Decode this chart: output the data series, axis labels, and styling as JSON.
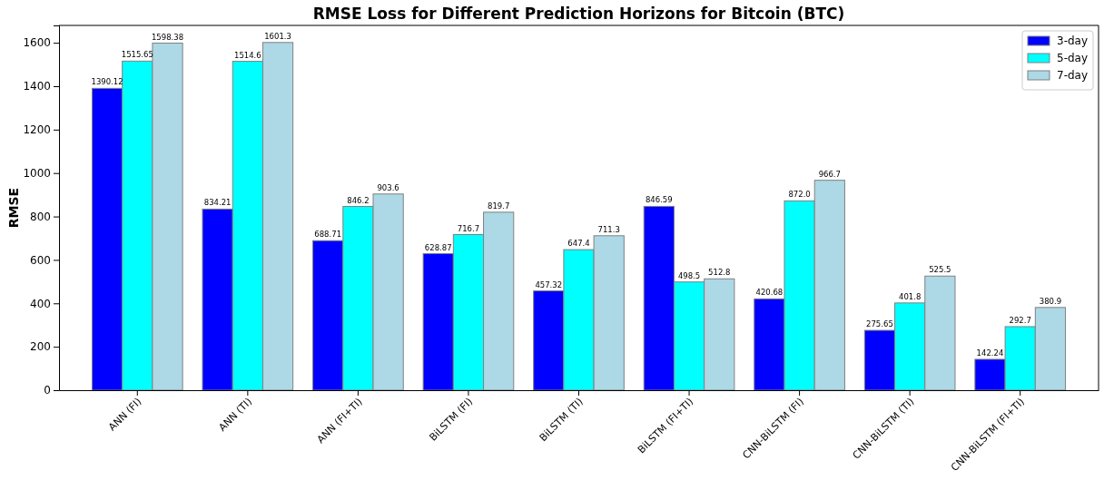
{
  "chart_data": {
    "type": "bar",
    "title": "RMSE Loss for Different Prediction Horizons for Bitcoin (BTC)",
    "ylabel": "RMSE",
    "categories": [
      "ANN (FI)",
      "ANN (TI)",
      "ANN (FI+TI)",
      "BiLSTM (FI)",
      "BiLSTM (TI)",
      "BiLSTM (FI+TI)",
      "CNN-BiLSTM (FI)",
      "CNN-BiLSTM (TI)",
      "CNN-BiLSTM (FI+TI)"
    ],
    "series": [
      {
        "name": "3-day",
        "color": "#0000ff",
        "values": [
          1390.12,
          834.21,
          688.71,
          628.87,
          457.32,
          846.59,
          420.68,
          275.65,
          142.24
        ],
        "value_labels": [
          "1390.12",
          "834.21",
          "688.71",
          "628.87",
          "457.32",
          "846.59",
          "420.68",
          "275.65",
          "142.24"
        ]
      },
      {
        "name": "5-day",
        "color": "#00ffff",
        "values": [
          1515.65,
          1514.6,
          846.2,
          716.7,
          647.4,
          498.5,
          872.0,
          401.8,
          292.7
        ],
        "value_labels": [
          "1515.65",
          "1514.6",
          "846.2",
          "716.7",
          "647.4",
          "498.5",
          "872.0",
          "401.8",
          "292.7"
        ]
      },
      {
        "name": "7-day",
        "color": "#add8e6",
        "values": [
          1598.38,
          1601.3,
          903.6,
          819.7,
          711.3,
          512.8,
          966.7,
          525.5,
          380.9
        ],
        "value_labels": [
          "1598.38",
          "1601.3",
          "903.6",
          "819.7",
          "711.3",
          "512.8",
          "966.7",
          "525.5",
          "380.9"
        ]
      }
    ],
    "ylim": [
      0,
      1680
    ],
    "yticks": [
      0,
      200,
      400,
      600,
      800,
      1000,
      1200,
      1400,
      1600
    ],
    "legend": "top right"
  }
}
